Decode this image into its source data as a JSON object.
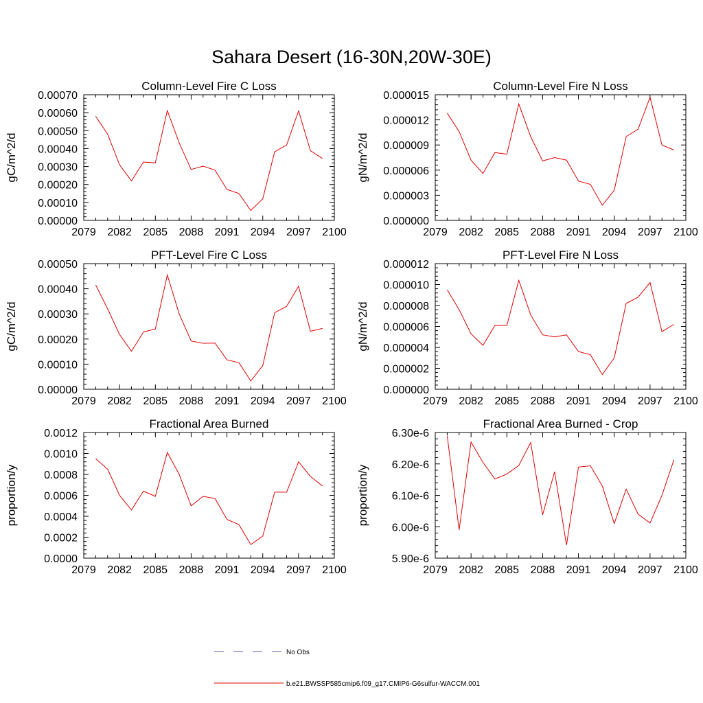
{
  "figure": {
    "title": "Sahara Desert (16-30N,20W-30E)"
  },
  "legend": {
    "items": [
      {
        "label": "No Obs",
        "color": "#5a5aa0",
        "dashed": true
      },
      {
        "label": "b.e21.BWSSP585cmip6.f09_g17.CMIP6-G6sulfur-WACCM.001",
        "color": "#e00000",
        "dashed": false
      }
    ]
  },
  "chart_data": [
    {
      "type": "line",
      "title": "Column-Level Fire C Loss",
      "ylabel": "gC/m^2/d",
      "xlim": [
        2079,
        2100
      ],
      "xticks": [
        "2079",
        "2082",
        "2085",
        "2088",
        "2091",
        "2094",
        "2097",
        "2100"
      ],
      "ylim": [
        0,
        0.0007
      ],
      "yticks": [
        "0.00000",
        "0.00010",
        "0.00020",
        "0.00030",
        "0.00040",
        "0.00050",
        "0.00060",
        "0.00070"
      ],
      "color": "#e00000",
      "x": [
        2080,
        2081,
        2082,
        2083,
        2084,
        2085,
        2086,
        2087,
        2088,
        2089,
        2090,
        2091,
        2092,
        2093,
        2094,
        2095,
        2096,
        2097,
        2098,
        2099
      ],
      "y": [
        0.00058,
        0.00048,
        0.00031,
        0.00022,
        0.000325,
        0.00032,
        0.000612,
        0.000432,
        0.000284,
        0.000302,
        0.00028,
        0.000172,
        0.00015,
        5.5e-05,
        0.00012,
        0.000382,
        0.00042,
        0.00061,
        0.000388,
        0.000345
      ]
    },
    {
      "type": "line",
      "title": "Column-Level Fire N Loss",
      "ylabel": "gN/m^2/d",
      "xlim": [
        2079,
        2100
      ],
      "xticks": [
        "2079",
        "2082",
        "2085",
        "2088",
        "2091",
        "2094",
        "2097",
        "2100"
      ],
      "ylim": [
        0,
        1.5e-05
      ],
      "yticks": [
        "0.000000",
        "0.000003",
        "0.000006",
        "0.000009",
        "0.000012",
        "0.000015"
      ],
      "color": "#e00000",
      "x": [
        2080,
        2081,
        2082,
        2083,
        2084,
        2085,
        2086,
        2087,
        2088,
        2089,
        2090,
        2091,
        2092,
        2093,
        2094,
        2095,
        2096,
        2097,
        2098,
        2099
      ],
      "y": [
        1.28e-05,
        1.06e-05,
        7.2e-06,
        5.6e-06,
        8.1e-06,
        7.9e-06,
        1.39e-05,
        1e-05,
        7.1e-06,
        7.5e-06,
        7.2e-06,
        4.7e-06,
        4.3e-06,
        1.8e-06,
        3.6e-06,
        1e-05,
        1.09e-05,
        1.47e-05,
        9e-06,
        8.4e-06
      ]
    },
    {
      "type": "line",
      "title": "PFT-Level Fire C Loss",
      "ylabel": "gC/m^2/d",
      "xlim": [
        2079,
        2100
      ],
      "xticks": [
        "2079",
        "2082",
        "2085",
        "2088",
        "2091",
        "2094",
        "2097",
        "2100"
      ],
      "ylim": [
        0,
        0.0005
      ],
      "yticks": [
        "0.00000",
        "0.00010",
        "0.00020",
        "0.00030",
        "0.00040",
        "0.00050"
      ],
      "color": "#e00000",
      "x": [
        2080,
        2081,
        2082,
        2083,
        2084,
        2085,
        2086,
        2087,
        2088,
        2089,
        2090,
        2091,
        2092,
        2093,
        2094,
        2095,
        2096,
        2097,
        2098,
        2099
      ],
      "y": [
        0.000415,
        0.00032,
        0.000218,
        0.000151,
        0.000228,
        0.00024,
        0.000455,
        0.0003,
        0.000192,
        0.000183,
        0.000184,
        0.000117,
        0.000106,
        3.3e-05,
        9.4e-05,
        0.000305,
        0.00033,
        0.00041,
        0.000231,
        0.000242
      ]
    },
    {
      "type": "line",
      "title": "PFT-Level Fire N Loss",
      "ylabel": "gN/m^2/d",
      "xlim": [
        2079,
        2100
      ],
      "xticks": [
        "2079",
        "2082",
        "2085",
        "2088",
        "2091",
        "2094",
        "2097",
        "2100"
      ],
      "ylim": [
        0,
        1.2e-05
      ],
      "yticks": [
        "0.000000",
        "0.000002",
        "0.000004",
        "0.000006",
        "0.000008",
        "0.000010",
        "0.000012"
      ],
      "color": "#e00000",
      "x": [
        2080,
        2081,
        2082,
        2083,
        2084,
        2085,
        2086,
        2087,
        2088,
        2089,
        2090,
        2091,
        2092,
        2093,
        2094,
        2095,
        2096,
        2097,
        2098,
        2099
      ],
      "y": [
        9.5e-06,
        7.6e-06,
        5.3e-06,
        4.2e-06,
        6.1e-06,
        6.1e-06,
        1.04e-05,
        7.1e-06,
        5.2e-06,
        5e-06,
        5.2e-06,
        3.6e-06,
        3.3e-06,
        1.4e-06,
        3e-06,
        8.2e-06,
        8.8e-06,
        1.02e-05,
        5.5e-06,
        6.2e-06
      ]
    },
    {
      "type": "line",
      "title": "Fractional Area Burned",
      "ylabel": "proportion/y",
      "xlim": [
        2079,
        2100
      ],
      "xticks": [
        "2079",
        "2082",
        "2085",
        "2088",
        "2091",
        "2094",
        "2097",
        "2100"
      ],
      "ylim": [
        0,
        0.0012
      ],
      "yticks": [
        "0.0000",
        "0.0002",
        "0.0004",
        "0.0006",
        "0.0008",
        "0.0010",
        "0.0012"
      ],
      "color": "#e00000",
      "x": [
        2080,
        2081,
        2082,
        2083,
        2084,
        2085,
        2086,
        2087,
        2088,
        2089,
        2090,
        2091,
        2092,
        2093,
        2094,
        2095,
        2096,
        2097,
        2098,
        2099
      ],
      "y": [
        0.00095,
        0.00085,
        0.0006,
        0.00046,
        0.00064,
        0.00059,
        0.00101,
        0.0008,
        0.0005,
        0.00059,
        0.00057,
        0.00037,
        0.00032,
        0.00013,
        0.00021,
        0.00063,
        0.00063,
        0.00092,
        0.00078,
        0.00069
      ]
    },
    {
      "type": "line",
      "title": "Fractional Area Burned - Crop",
      "ylabel": "proportion/y",
      "xlim": [
        2079,
        2100
      ],
      "xticks": [
        "2079",
        "2082",
        "2085",
        "2088",
        "2091",
        "2094",
        "2097",
        "2100"
      ],
      "ylim": [
        5.9e-06,
        6.3e-06
      ],
      "yticks": [
        "5.90e-6",
        "6.00e-6",
        "6.10e-6",
        "6.20e-6",
        "6.30e-6"
      ],
      "color": "#e00000",
      "x": [
        2080,
        2081,
        2082,
        2083,
        2084,
        2085,
        2086,
        2087,
        2088,
        2089,
        2090,
        2091,
        2092,
        2093,
        2094,
        2095,
        2096,
        2097,
        2098,
        2099
      ],
      "y": [
        6.29e-06,
        5.99e-06,
        6.27e-06,
        6.205e-06,
        6.152e-06,
        6.168e-06,
        6.195e-06,
        6.268e-06,
        6.038e-06,
        6.175e-06,
        5.942e-06,
        6.19e-06,
        6.194e-06,
        6.13e-06,
        6.01e-06,
        6.12e-06,
        6.04e-06,
        6.012e-06,
        6.1e-06,
        6.213e-06
      ]
    }
  ]
}
